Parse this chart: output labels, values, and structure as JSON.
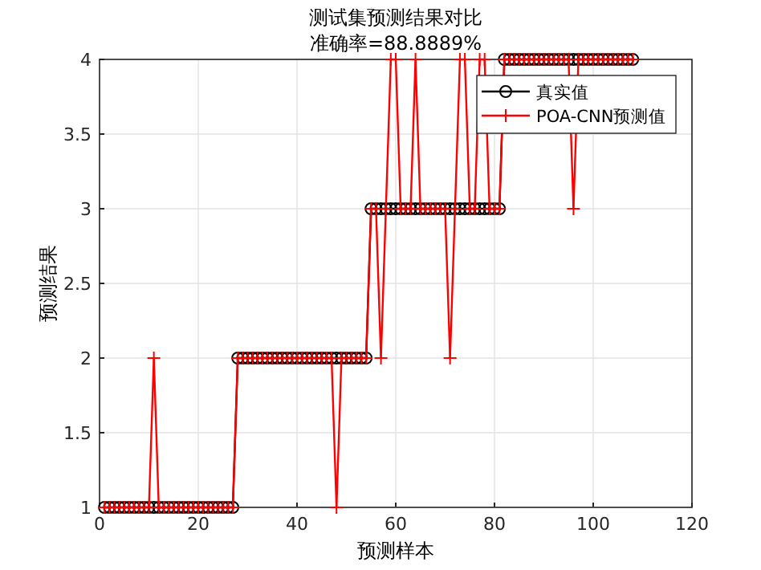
{
  "chart_data": {
    "type": "line",
    "title": "测试集预测结果对比",
    "subtitle": "准确率=88.8889%",
    "xlabel": "预测样本",
    "ylabel": "预测结果",
    "x": [
      1,
      2,
      3,
      4,
      5,
      6,
      7,
      8,
      9,
      10,
      11,
      12,
      13,
      14,
      15,
      16,
      17,
      18,
      19,
      20,
      21,
      22,
      23,
      24,
      25,
      26,
      27,
      28,
      29,
      30,
      31,
      32,
      33,
      34,
      35,
      36,
      37,
      38,
      39,
      40,
      41,
      42,
      43,
      44,
      45,
      46,
      47,
      48,
      49,
      50,
      51,
      52,
      53,
      54,
      55,
      56,
      57,
      58,
      59,
      60,
      61,
      62,
      63,
      64,
      65,
      66,
      67,
      68,
      69,
      70,
      71,
      72,
      73,
      74,
      75,
      76,
      77,
      78,
      79,
      80,
      81,
      82,
      83,
      84,
      85,
      86,
      87,
      88,
      89,
      90,
      91,
      92,
      93,
      94,
      95,
      96,
      97,
      98,
      99,
      100,
      101,
      102,
      103,
      104,
      105,
      106,
      107,
      108
    ],
    "series": [
      {
        "name": "真实值",
        "color": "#000000",
        "marker": "circle",
        "values": [
          1,
          1,
          1,
          1,
          1,
          1,
          1,
          1,
          1,
          1,
          1,
          1,
          1,
          1,
          1,
          1,
          1,
          1,
          1,
          1,
          1,
          1,
          1,
          1,
          1,
          1,
          1,
          2,
          2,
          2,
          2,
          2,
          2,
          2,
          2,
          2,
          2,
          2,
          2,
          2,
          2,
          2,
          2,
          2,
          2,
          2,
          2,
          2,
          2,
          2,
          2,
          2,
          2,
          2,
          3,
          3,
          3,
          3,
          3,
          3,
          3,
          3,
          3,
          3,
          3,
          3,
          3,
          3,
          3,
          3,
          3,
          3,
          3,
          3,
          3,
          3,
          3,
          3,
          3,
          3,
          3,
          4,
          4,
          4,
          4,
          4,
          4,
          4,
          4,
          4,
          4,
          4,
          4,
          4,
          4,
          4,
          4,
          4,
          4,
          4,
          4,
          4,
          4,
          4,
          4,
          4,
          4,
          4
        ]
      },
      {
        "name": "POA-CNN预测值",
        "color": "#ff0000",
        "marker": "cross",
        "values": [
          1,
          1,
          1,
          1,
          1,
          1,
          1,
          1,
          1,
          1,
          2,
          1,
          1,
          1,
          1,
          1,
          1,
          1,
          1,
          1,
          1,
          1,
          1,
          1,
          1,
          1,
          1,
          2,
          2,
          2,
          2,
          2,
          2,
          2,
          2,
          2,
          2,
          2,
          2,
          2,
          2,
          2,
          2,
          2,
          2,
          2,
          2,
          1,
          2,
          2,
          2,
          2,
          2,
          2,
          3,
          3,
          2,
          3,
          4,
          4,
          3,
          3,
          3,
          4,
          3,
          3,
          3,
          3,
          3,
          3,
          2,
          3,
          4,
          4,
          3,
          3,
          4,
          4,
          3,
          3,
          3,
          4,
          4,
          4,
          4,
          4,
          4,
          4,
          4,
          4,
          4,
          4,
          4,
          4,
          4,
          3,
          4,
          4,
          4,
          4,
          4,
          4,
          4,
          4,
          4,
          4,
          4,
          4
        ]
      }
    ],
    "xlim": [
      0,
      120
    ],
    "xticks": [
      0,
      20,
      40,
      60,
      80,
      100,
      120
    ],
    "ylim": [
      1,
      4
    ],
    "yticks": [
      1,
      1.5,
      2,
      2.5,
      3,
      3.5,
      4
    ],
    "grid": true,
    "legend": "top right",
    "line_style": "solid"
  }
}
